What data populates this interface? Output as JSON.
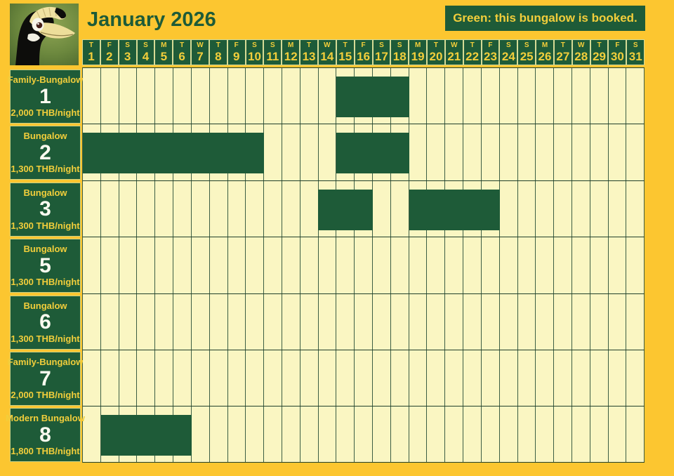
{
  "header": {
    "title": "January 2026",
    "legend": "Green: this bungalow is booked.",
    "logo": "oriental-pied-hornbill"
  },
  "calendar": {
    "days": [
      {
        "dow": "T",
        "date": 1
      },
      {
        "dow": "F",
        "date": 2
      },
      {
        "dow": "S",
        "date": 3
      },
      {
        "dow": "S",
        "date": 4
      },
      {
        "dow": "M",
        "date": 5
      },
      {
        "dow": "T",
        "date": 6
      },
      {
        "dow": "W",
        "date": 7
      },
      {
        "dow": "T",
        "date": 8
      },
      {
        "dow": "F",
        "date": 9
      },
      {
        "dow": "S",
        "date": 10
      },
      {
        "dow": "S",
        "date": 11
      },
      {
        "dow": "M",
        "date": 12
      },
      {
        "dow": "T",
        "date": 13
      },
      {
        "dow": "W",
        "date": 14
      },
      {
        "dow": "T",
        "date": 15
      },
      {
        "dow": "F",
        "date": 16
      },
      {
        "dow": "S",
        "date": 17
      },
      {
        "dow": "S",
        "date": 18
      },
      {
        "dow": "M",
        "date": 19
      },
      {
        "dow": "T",
        "date": 20
      },
      {
        "dow": "W",
        "date": 21
      },
      {
        "dow": "T",
        "date": 22
      },
      {
        "dow": "F",
        "date": 23
      },
      {
        "dow": "S",
        "date": 24
      },
      {
        "dow": "S",
        "date": 25
      },
      {
        "dow": "M",
        "date": 26
      },
      {
        "dow": "T",
        "date": 27
      },
      {
        "dow": "W",
        "date": 28
      },
      {
        "dow": "T",
        "date": 29
      },
      {
        "dow": "F",
        "date": 30
      },
      {
        "dow": "S",
        "date": 31
      }
    ],
    "bungalows": [
      {
        "name": "Family-Bungalow",
        "number": "1",
        "price": "2,000 THB/night",
        "booked": [
          {
            "from": 15,
            "to": 18
          }
        ]
      },
      {
        "name": "Bungalow",
        "number": "2",
        "price": "1,300 THB/night",
        "booked": [
          {
            "from": 1,
            "to": 10
          },
          {
            "from": 15,
            "to": 18
          }
        ]
      },
      {
        "name": "Bungalow",
        "number": "3",
        "price": "1,300 THB/night",
        "booked": [
          {
            "from": 14,
            "to": 16
          },
          {
            "from": 19,
            "to": 23
          }
        ]
      },
      {
        "name": "Bungalow",
        "number": "5",
        "price": "1,300 THB/night",
        "booked": []
      },
      {
        "name": "Bungalow",
        "number": "6",
        "price": "1,300 THB/night",
        "booked": []
      },
      {
        "name": "Family-Bungalow",
        "number": "7",
        "price": "2,000 THB/night",
        "booked": []
      },
      {
        "name": "Modern Bungalow",
        "number": "8",
        "price": "1,800 THB/night",
        "booked": [
          {
            "from": 2,
            "to": 6
          }
        ]
      }
    ]
  },
  "colors": {
    "background": "#FCC630",
    "green": "#1E5B38",
    "cream": "#FAF6C2",
    "yellow_text": "#F2CE3B",
    "grid_line_vertical": "#3C5E44",
    "grid_line_horizontal": "#21402B",
    "header_cell_border": "#D6DB95",
    "number_white": "#FCFCF0"
  }
}
